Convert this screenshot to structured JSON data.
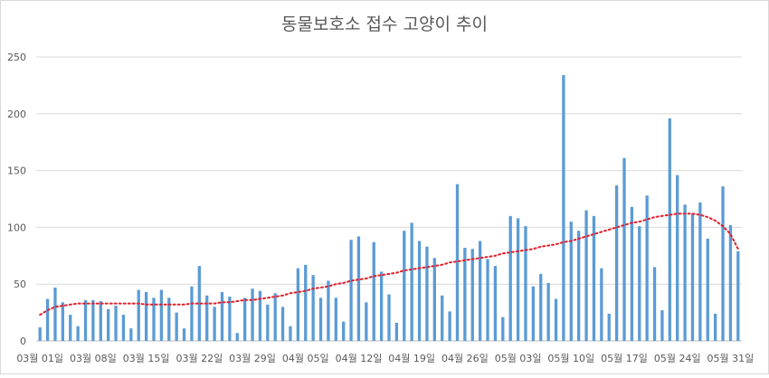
{
  "chart_data": {
    "type": "bar",
    "title": "동물보호소 접수 고양이 추이",
    "xlabel": "",
    "ylabel": "",
    "ylim": [
      0,
      250
    ],
    "y_ticks": [
      0,
      50,
      100,
      150,
      200,
      250
    ],
    "grid": true,
    "legend": "none",
    "x_tick_labels": [
      "03월 01일",
      "03월 08일",
      "03월 15일",
      "03월 22일",
      "03월 29일",
      "04월 05일",
      "04월 12일",
      "04월 19일",
      "04월 26일",
      "05월 03일",
      "05월 10일",
      "05월 17일",
      "05월 24일",
      "05월 31일"
    ],
    "x_tick_every": 7,
    "bar_color": "#5b9bd5",
    "trend_color": "#e0202a",
    "trendline": "polynomial",
    "values": [
      12,
      37,
      47,
      34,
      23,
      13,
      36,
      36,
      35,
      28,
      31,
      23,
      11,
      45,
      43,
      38,
      45,
      38,
      25,
      11,
      48,
      66,
      40,
      30,
      43,
      39,
      7,
      38,
      46,
      44,
      32,
      42,
      30,
      13,
      64,
      67,
      58,
      38,
      53,
      38,
      17,
      89,
      92,
      34,
      87,
      61,
      41,
      16,
      97,
      104,
      88,
      83,
      73,
      40,
      26,
      138,
      82,
      81,
      88,
      72,
      66,
      21,
      110,
      108,
      101,
      48,
      59,
      51,
      37,
      234,
      105,
      97,
      115,
      110,
      64,
      24,
      137,
      161,
      118,
      101,
      128,
      65,
      27,
      196,
      146,
      120,
      112,
      122,
      90,
      24,
      136,
      102,
      79
    ],
    "trend": [
      23,
      27,
      30,
      31,
      32,
      33,
      33,
      33,
      33,
      33,
      33,
      33,
      33,
      33,
      32,
      32,
      32,
      32,
      32,
      32,
      33,
      33,
      33,
      33,
      34,
      34,
      35,
      36,
      36,
      37,
      38,
      39,
      40,
      42,
      43,
      44,
      46,
      47,
      48,
      50,
      51,
      53,
      54,
      55,
      57,
      58,
      59,
      60,
      62,
      63,
      64,
      65,
      66,
      67,
      69,
      70,
      71,
      72,
      73,
      74,
      75,
      77,
      78,
      79,
      80,
      81,
      83,
      84,
      85,
      87,
      88,
      90,
      92,
      94,
      96,
      98,
      100,
      102,
      104,
      105,
      107,
      109,
      110,
      111,
      112,
      112,
      112,
      111,
      109,
      106,
      101,
      94,
      81
    ]
  }
}
